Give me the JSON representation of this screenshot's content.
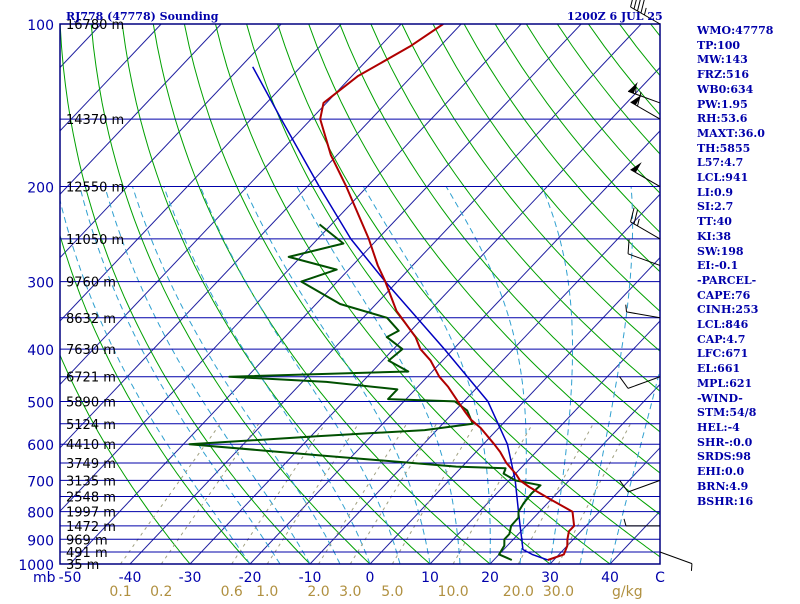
{
  "header": {
    "station": "RJ778 (47778) Sounding",
    "time": "1200Z  6 JUL 25"
  },
  "indices": [
    "WMO:47778",
    "TP:100",
    "MW:143",
    "FRZ:516",
    "WB0:634",
    "PW:1.95",
    "RH:53.6",
    "MAXT:36.0",
    "TH:5855",
    "L57:4.7",
    "LCL:941",
    "LI:0.9",
    "SI:2.7",
    "TT:40",
    "KI:38",
    "SW:198",
    "EI:-0.1",
    "-PARCEL-",
    "CAPE:76",
    "CINH:253",
    "LCL:846",
    "CAP:4.7",
    "LFC:671",
    "EL:661",
    "MPL:621",
    "-WIND-",
    "STM:54/8",
    "HEL:-4",
    "SHR-:0.0",
    "SRDS:98",
    "EHI:0.0",
    "BRN:4.9",
    "BSHR:16"
  ],
  "colors": {
    "frame": "#000080",
    "isobar": "#0000aa",
    "isotherm": "#2020a0",
    "dry_adiabat": "#00a000",
    "moist_adiabat": "#30a0d0",
    "mixing_ratio": "#a0a080",
    "temperature": "#b00000",
    "dewpoint": "#005000",
    "parcel": "#0000c0",
    "text": "#0000aa",
    "mixing_label": "#b09040"
  },
  "chart_data": {
    "type": "line",
    "title": "RJ778 (47778) Sounding",
    "pressure_axis": {
      "scale": "log",
      "range": [
        1000,
        100
      ],
      "ticks": [
        {
          "p": 100,
          "label": "100"
        },
        {
          "p": 200,
          "label": "200"
        },
        {
          "p": 300,
          "label": "300"
        },
        {
          "p": 400,
          "label": "400"
        },
        {
          "p": 500,
          "label": "500"
        },
        {
          "p": 600,
          "label": "600"
        },
        {
          "p": 700,
          "label": "700"
        },
        {
          "p": 800,
          "label": "800"
        },
        {
          "p": 900,
          "label": "900"
        },
        {
          "p": 1000,
          "label": "1000"
        }
      ],
      "unit_label": "mb"
    },
    "height_labels": [
      {
        "p": 100,
        "label": "16780 m"
      },
      {
        "p": 150,
        "label": "14370 m"
      },
      {
        "p": 200,
        "label": "12550 m"
      },
      {
        "p": 250,
        "label": "11050 m"
      },
      {
        "p": 300,
        "label": "9760 m"
      },
      {
        "p": 350,
        "label": "8632 m"
      },
      {
        "p": 400,
        "label": "7630 m"
      },
      {
        "p": 450,
        "label": "6721 m"
      },
      {
        "p": 500,
        "label": "5890 m"
      },
      {
        "p": 550,
        "label": "5124 m"
      },
      {
        "p": 600,
        "label": "4410 m"
      },
      {
        "p": 650,
        "label": "3749 m"
      },
      {
        "p": 700,
        "label": "3135 m"
      },
      {
        "p": 750,
        "label": "2548 m"
      },
      {
        "p": 800,
        "label": "1997 m"
      },
      {
        "p": 850,
        "label": "1472 m"
      },
      {
        "p": 900,
        "label": "969 m"
      },
      {
        "p": 950,
        "label": "491 m"
      },
      {
        "p": 1000,
        "label": "35 m"
      }
    ],
    "temperature_axis": {
      "range": [
        -50,
        50
      ],
      "ticks": [
        {
          "t": -50,
          "label": "-50"
        },
        {
          "t": -40,
          "label": "-40"
        },
        {
          "t": -30,
          "label": "-30"
        },
        {
          "t": -20,
          "label": "-20"
        },
        {
          "t": -10,
          "label": "-10"
        },
        {
          "t": 0,
          "label": "0"
        },
        {
          "t": 10,
          "label": "10"
        },
        {
          "t": 20,
          "label": "20"
        },
        {
          "t": 30,
          "label": "30"
        },
        {
          "t": 40,
          "label": "40"
        }
      ],
      "unit_label": "C"
    },
    "mixing_ratio_labels": {
      "values": [
        "0.1",
        "0.2",
        "0.6",
        "1.0",
        "2.0",
        "3.0",
        "5.0",
        "10.0",
        "20.0",
        "30.0"
      ],
      "unit_label": "g/kg"
    },
    "temperature_profile": [
      {
        "p": 983,
        "t": 29.0
      },
      {
        "p": 960,
        "t": 30.8
      },
      {
        "p": 925,
        "t": 30.0
      },
      {
        "p": 900,
        "t": 29.0
      },
      {
        "p": 870,
        "t": 28.0
      },
      {
        "p": 850,
        "t": 28.0
      },
      {
        "p": 800,
        "t": 25.5
      },
      {
        "p": 760,
        "t": 20.0
      },
      {
        "p": 720,
        "t": 14.4
      },
      {
        "p": 700,
        "t": 11.8
      },
      {
        "p": 680,
        "t": 10.0
      },
      {
        "p": 650,
        "t": 6.8
      },
      {
        "p": 620,
        "t": 4.0
      },
      {
        "p": 600,
        "t": 1.8
      },
      {
        "p": 560,
        "t": -3.0
      },
      {
        "p": 540,
        "t": -6.0
      },
      {
        "p": 520,
        "t": -8.5
      },
      {
        "p": 500,
        "t": -11.0
      },
      {
        "p": 470,
        "t": -14.9
      },
      {
        "p": 450,
        "t": -18.0
      },
      {
        "p": 420,
        "t": -22.0
      },
      {
        "p": 400,
        "t": -25.5
      },
      {
        "p": 380,
        "t": -28.2
      },
      {
        "p": 340,
        "t": -35.5
      },
      {
        "p": 300,
        "t": -42.0
      },
      {
        "p": 280,
        "t": -45.8
      },
      {
        "p": 250,
        "t": -51.5
      },
      {
        "p": 200,
        "t": -63.5
      },
      {
        "p": 175,
        "t": -71.0
      },
      {
        "p": 150,
        "t": -78.5
      },
      {
        "p": 140,
        "t": -80.5
      },
      {
        "p": 125,
        "t": -79.0
      },
      {
        "p": 110,
        "t": -75.0
      },
      {
        "p": 100,
        "t": -73.0
      }
    ],
    "dewpoint_profile": [
      {
        "p": 983,
        "t": 23.0
      },
      {
        "p": 960,
        "t": 20.0
      },
      {
        "p": 925,
        "t": 19.5
      },
      {
        "p": 900,
        "t": 18.5
      },
      {
        "p": 880,
        "t": 18.5
      },
      {
        "p": 850,
        "t": 17.5
      },
      {
        "p": 820,
        "t": 17.4
      },
      {
        "p": 800,
        "t": 16.5
      },
      {
        "p": 770,
        "t": 16.0
      },
      {
        "p": 740,
        "t": 15.8
      },
      {
        "p": 715,
        "t": 16.0
      },
      {
        "p": 700,
        "t": 11.0
      },
      {
        "p": 680,
        "t": 8.0
      },
      {
        "p": 665,
        "t": 7.5
      },
      {
        "p": 660,
        "t": -1.0
      },
      {
        "p": 630,
        "t": -25.0
      },
      {
        "p": 600,
        "t": -49.0
      },
      {
        "p": 580,
        "t": -29.0
      },
      {
        "p": 565,
        "t": -12.0
      },
      {
        "p": 550,
        "t": -5.0
      },
      {
        "p": 520,
        "t": -8.0
      },
      {
        "p": 500,
        "t": -11.5
      },
      {
        "p": 495,
        "t": -23.0
      },
      {
        "p": 475,
        "t": -23.0
      },
      {
        "p": 460,
        "t": -36.0
      },
      {
        "p": 450,
        "t": -53.0
      },
      {
        "p": 440,
        "t": -24.0
      },
      {
        "p": 420,
        "t": -29.0
      },
      {
        "p": 400,
        "t": -28.5
      },
      {
        "p": 380,
        "t": -33.0
      },
      {
        "p": 370,
        "t": -32.0
      },
      {
        "p": 350,
        "t": -36.0
      },
      {
        "p": 330,
        "t": -46.0
      },
      {
        "p": 300,
        "t": -56.0
      },
      {
        "p": 285,
        "t": -52.0
      },
      {
        "p": 270,
        "t": -62.0
      },
      {
        "p": 255,
        "t": -55.0
      },
      {
        "p": 235,
        "t": -62.0
      }
    ],
    "parcel_profile": [
      {
        "p": 983,
        "t": 29.0
      },
      {
        "p": 960,
        "t": 25.5
      },
      {
        "p": 940,
        "t": 23.2
      },
      {
        "p": 900,
        "t": 21.4
      },
      {
        "p": 850,
        "t": 19.0
      },
      {
        "p": 800,
        "t": 16.5
      },
      {
        "p": 700,
        "t": 11.0
      },
      {
        "p": 600,
        "t": 4.0
      },
      {
        "p": 500,
        "t": -6.0
      },
      {
        "p": 400,
        "t": -21.5
      },
      {
        "p": 300,
        "t": -42.0
      },
      {
        "p": 250,
        "t": -54.5
      },
      {
        "p": 200,
        "t": -68.0
      },
      {
        "p": 150,
        "t": -85.0
      },
      {
        "p": 120,
        "t": -98.0
      }
    ],
    "wind_barbs": [
      {
        "p": 100,
        "dir": 300,
        "spd": 45
      },
      {
        "p": 140,
        "dir": 290,
        "spd": 55
      },
      {
        "p": 150,
        "dir": 300,
        "spd": 60
      },
      {
        "p": 200,
        "dir": 300,
        "spd": 50
      },
      {
        "p": 250,
        "dir": 300,
        "spd": 25
      },
      {
        "p": 280,
        "dir": 290,
        "spd": 10
      },
      {
        "p": 350,
        "dir": 280,
        "spd": 5
      },
      {
        "p": 450,
        "dir": 250,
        "spd": 10
      },
      {
        "p": 700,
        "dir": 250,
        "spd": 10
      },
      {
        "p": 850,
        "dir": 270,
        "spd": 5
      },
      {
        "p": 950,
        "dir": 110,
        "spd": 5
      }
    ]
  }
}
